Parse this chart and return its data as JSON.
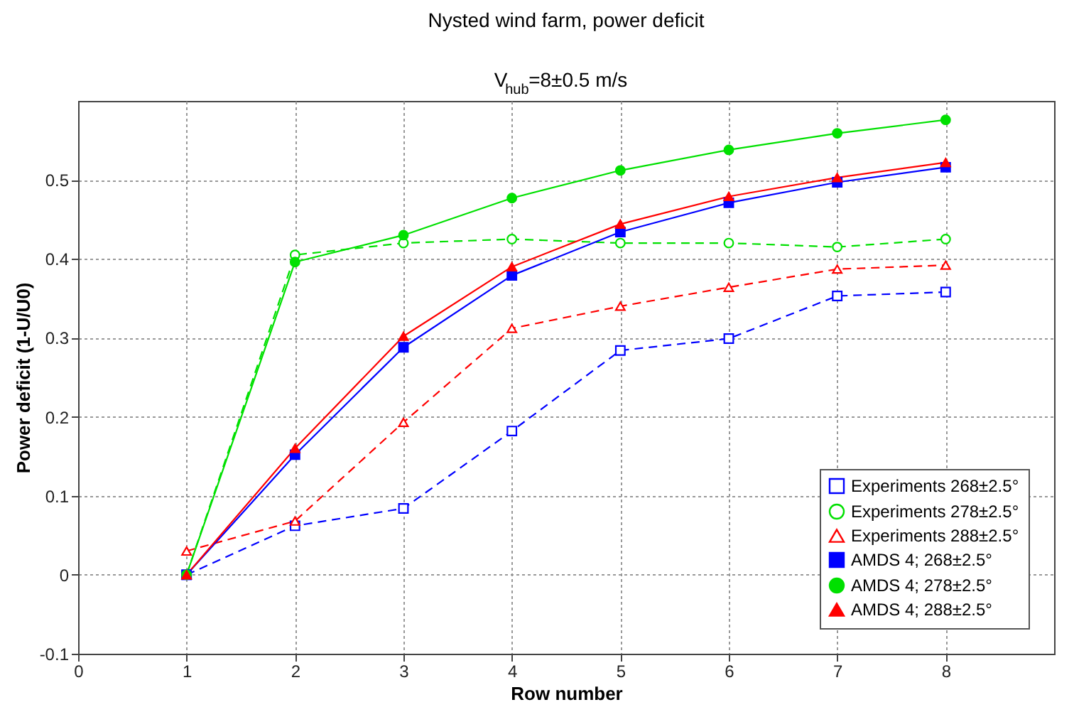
{
  "chart_data": {
    "type": "line",
    "title": "Nysted wind farm, power deficit",
    "subtitle": "V$_{hub}$=8±0.5 m/s",
    "xlabel": "Row number",
    "ylabel": "Power deficit (1-U/U0)",
    "x": [
      1,
      2,
      3,
      4,
      5,
      6,
      7,
      8
    ],
    "xlim": [
      0,
      9
    ],
    "xticks": [
      0,
      1,
      2,
      3,
      4,
      5,
      6,
      7,
      8
    ],
    "ylim": [
      -0.1,
      0.6
    ],
    "yticks": [
      -0.1,
      0,
      0.1,
      0.2,
      0.3,
      0.4,
      0.5
    ],
    "grid": true,
    "legend": "bottom right",
    "series": [
      {
        "name": "Experiments 268±2.5°",
        "color": "#0000ff",
        "marker": "square",
        "line_style": "dashed",
        "values": [
          0,
          0.062,
          0.084,
          0.182,
          0.284,
          0.299,
          0.353,
          0.358
        ]
      },
      {
        "name": "Experiments 278±2.5°",
        "color": "#00e000",
        "marker": "circle",
        "line_style": "dashed",
        "values": [
          0,
          0.405,
          0.42,
          0.425,
          0.42,
          0.42,
          0.415,
          0.425
        ]
      },
      {
        "name": "Experiments 288±2.5°",
        "color": "#ff0000",
        "marker": "triangle",
        "line_style": "dashed",
        "values": [
          0.03,
          0.068,
          0.193,
          0.312,
          0.34,
          0.364,
          0.387,
          0.392
        ]
      },
      {
        "name": "AMDS 4; 268±2.5°",
        "color": "#0000ff",
        "marker": "square",
        "line_style": "solid",
        "values": [
          0,
          0.152,
          0.288,
          0.379,
          0.434,
          0.471,
          0.497,
          0.516
        ]
      },
      {
        "name": "AMDS 4; 278±2.5°",
        "color": "#00e000",
        "marker": "circle",
        "line_style": "solid",
        "values": [
          0,
          0.396,
          0.43,
          0.477,
          0.512,
          0.538,
          0.559,
          0.576
        ]
      },
      {
        "name": "AMDS 4; 288±2.5°",
        "color": "#ff0000",
        "marker": "triangle",
        "line_style": "solid",
        "values": [
          0,
          0.16,
          0.302,
          0.39,
          0.444,
          0.479,
          0.503,
          0.522
        ]
      }
    ]
  }
}
